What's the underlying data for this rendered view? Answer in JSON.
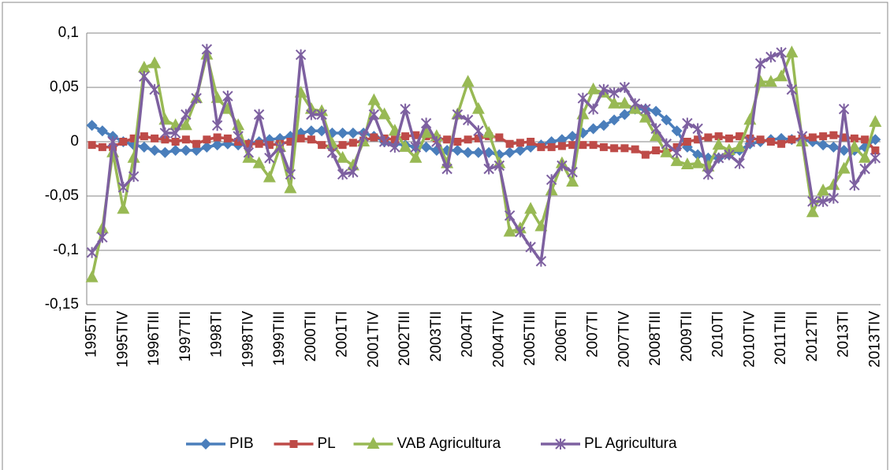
{
  "chart_data": {
    "type": "line",
    "categories": [
      "1995TI",
      null,
      null,
      "1995TIV",
      null,
      null,
      "1996TIII",
      null,
      null,
      "1997TII",
      null,
      null,
      "1998TI",
      null,
      null,
      "1998TIV",
      null,
      null,
      "1999TIII",
      null,
      null,
      "2000TII",
      null,
      null,
      "2001TI",
      null,
      null,
      "2001TIV",
      null,
      null,
      "2002TIII",
      null,
      null,
      "2003TII",
      null,
      null,
      "2004TI",
      null,
      null,
      "2004TIV",
      null,
      null,
      "2005TIII",
      null,
      null,
      "2006TII",
      null,
      null,
      "2007TI",
      null,
      null,
      "2007TIV",
      null,
      null,
      "2008TIII",
      null,
      null,
      "2009TII",
      null,
      null,
      "2010TI",
      null,
      null,
      "2010TIV",
      null,
      null,
      "2011TIII",
      null,
      null,
      "2012TII",
      null,
      null,
      "2013TI",
      null,
      null,
      "2013TIV"
    ],
    "series": [
      {
        "name": "PIB",
        "color": "#4a7ebb",
        "values": [
          0.015,
          0.01,
          0.005,
          0.0,
          -0.003,
          -0.005,
          -0.008,
          -0.01,
          -0.008,
          -0.008,
          -0.008,
          -0.005,
          -0.003,
          -0.002,
          -0.003,
          -0.002,
          0.0,
          0.002,
          0.003,
          0.005,
          0.008,
          0.01,
          0.01,
          0.008,
          0.008,
          0.008,
          0.008,
          0.005,
          0.0,
          -0.002,
          -0.003,
          -0.005,
          -0.005,
          -0.008,
          -0.008,
          -0.008,
          -0.01,
          -0.01,
          -0.01,
          -0.012,
          -0.01,
          -0.008,
          -0.005,
          -0.003,
          0.0,
          0.002,
          0.005,
          0.008,
          0.012,
          0.015,
          0.02,
          0.025,
          0.03,
          0.03,
          0.028,
          0.02,
          0.01,
          -0.005,
          -0.012,
          -0.015,
          -0.015,
          -0.012,
          -0.008,
          -0.002,
          0.0,
          0.002,
          0.003,
          0.002,
          0.002,
          0.0,
          -0.003,
          -0.005,
          -0.008,
          -0.008,
          -0.005,
          0.002
        ]
      },
      {
        "name": "PL",
        "color": "#be4b48",
        "values": [
          -0.003,
          -0.005,
          -0.005,
          0.0,
          0.003,
          0.005,
          0.003,
          0.002,
          0.0,
          0.002,
          -0.002,
          0.002,
          0.004,
          0.003,
          0.0,
          -0.002,
          -0.002,
          -0.003,
          -0.002,
          0.0,
          0.003,
          0.002,
          -0.003,
          -0.005,
          -0.003,
          -0.001,
          0.001,
          0.004,
          0.003,
          0.002,
          0.005,
          0.006,
          0.005,
          0.003,
          0.002,
          0.0,
          0.002,
          0.003,
          0.005,
          0.004,
          -0.002,
          -0.001,
          0.0,
          -0.005,
          -0.005,
          -0.004,
          -0.003,
          -0.003,
          -0.003,
          -0.005,
          -0.006,
          -0.006,
          -0.007,
          -0.012,
          -0.008,
          -0.01,
          -0.005,
          0.0,
          0.002,
          0.004,
          0.005,
          0.003,
          0.005,
          0.003,
          0.002,
          0.0,
          -0.002,
          0.002,
          0.003,
          0.004,
          0.005,
          0.006,
          0.004,
          0.003,
          0.002,
          -0.008
        ]
      },
      {
        "name": "VAB Agricultura",
        "color": "#98b954",
        "values": [
          -0.125,
          -0.08,
          -0.01,
          -0.062,
          -0.015,
          0.068,
          0.072,
          0.02,
          0.015,
          0.015,
          0.04,
          0.08,
          0.04,
          0.03,
          0.015,
          -0.015,
          -0.02,
          -0.033,
          -0.005,
          -0.043,
          0.045,
          0.03,
          0.028,
          -0.002,
          -0.015,
          -0.022,
          0.0,
          0.038,
          0.025,
          0.01,
          -0.005,
          -0.015,
          0.008,
          0.005,
          -0.02,
          0.025,
          0.055,
          0.03,
          0.008,
          -0.02,
          -0.083,
          -0.08,
          -0.062,
          -0.078,
          -0.045,
          -0.02,
          -0.037,
          0.025,
          0.048,
          0.045,
          0.035,
          0.035,
          0.03,
          0.022,
          0.005,
          -0.01,
          -0.018,
          -0.021,
          -0.02,
          -0.023,
          -0.003,
          -0.008,
          -0.005,
          0.02,
          0.055,
          0.055,
          0.06,
          0.082,
          0.0,
          -0.065,
          -0.045,
          -0.04,
          -0.025,
          -0.005,
          -0.015,
          0.018
        ]
      },
      {
        "name": "PL Agricultura",
        "color": "#7d60a0",
        "values": [
          -0.102,
          -0.088,
          0.0,
          -0.042,
          -0.032,
          0.06,
          0.048,
          0.008,
          0.008,
          0.025,
          0.04,
          0.085,
          0.015,
          0.042,
          0.005,
          -0.01,
          0.025,
          -0.015,
          -0.005,
          -0.03,
          0.08,
          0.025,
          0.025,
          -0.01,
          -0.03,
          -0.028,
          0.005,
          0.025,
          0.0,
          -0.005,
          0.03,
          -0.005,
          0.017,
          0.0,
          -0.025,
          0.025,
          0.02,
          0.01,
          -0.025,
          -0.022,
          -0.068,
          -0.083,
          -0.097,
          -0.11,
          -0.035,
          -0.022,
          -0.028,
          0.04,
          0.03,
          0.048,
          0.045,
          0.05,
          0.035,
          0.03,
          0.012,
          -0.002,
          -0.01,
          0.017,
          0.012,
          -0.03,
          -0.015,
          -0.012,
          -0.02,
          0.0,
          0.072,
          0.078,
          0.082,
          0.048,
          0.005,
          -0.055,
          -0.055,
          -0.052,
          0.03,
          -0.04,
          -0.025,
          -0.015
        ]
      }
    ],
    "ylim": [
      -0.15,
      0.1
    ],
    "yticks": [
      {
        "value": -0.15,
        "label": "-0,15"
      },
      {
        "value": -0.1,
        "label": "-0,1"
      },
      {
        "value": -0.05,
        "label": "-0,05"
      },
      0,
      {
        "value": 0.05,
        "label": "0,05"
      },
      {
        "value": 0.1,
        "label": "0,1"
      }
    ],
    "grid": true,
    "legend": "bottom"
  }
}
